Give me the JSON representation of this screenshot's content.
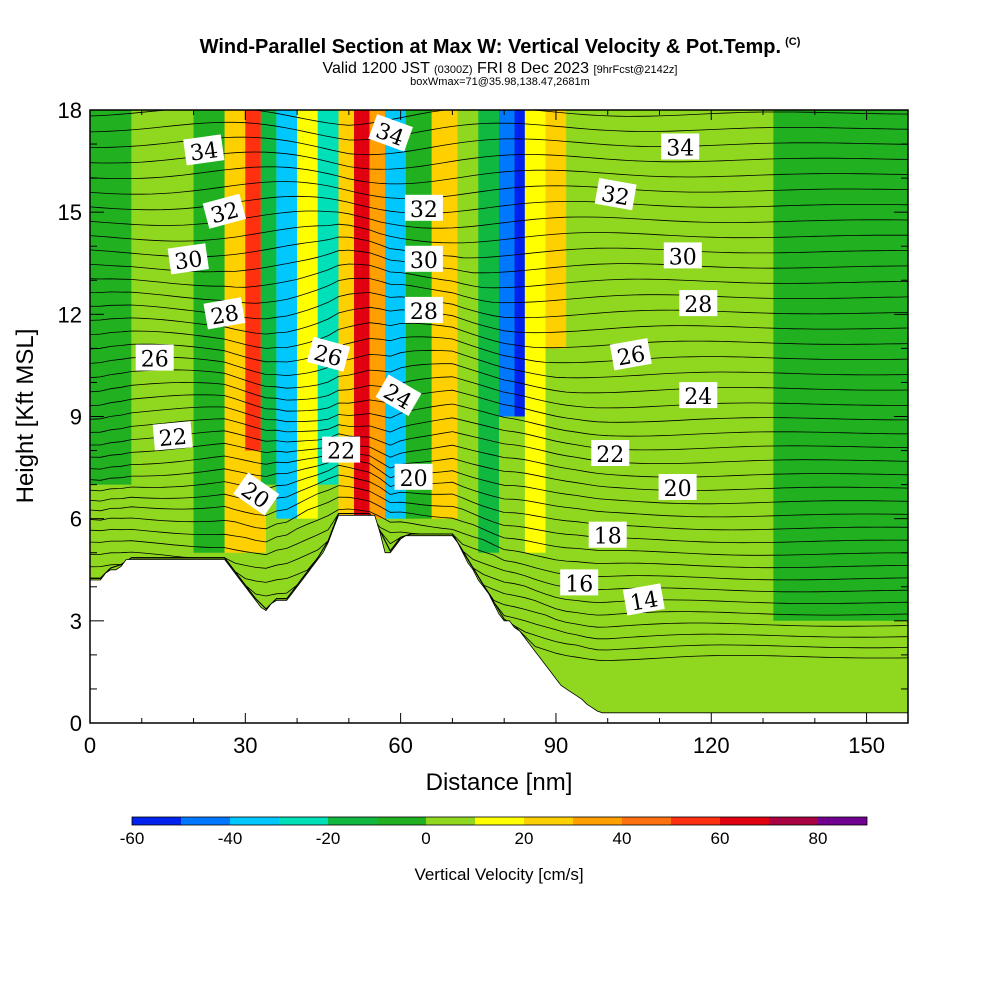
{
  "header": {
    "title": "Wind-Parallel Section at Max W: Vertical Velocity & Pot.Temp.",
    "copyright": "(C)",
    "valid_prefix": "Valid 1200 JST",
    "valid_utc": "(0300Z)",
    "valid_date": "FRI 8 Dec 2023",
    "forecast": "[9hrFcst@2142z]",
    "box_info": "boxWmax=71@35.98,138.47,2681m"
  },
  "chart_data": {
    "type": "heatmap",
    "xlabel": "Distance [nm]",
    "ylabel": "Height [Kft MSL]",
    "xlim": [
      0,
      158
    ],
    "ylim": [
      0,
      18
    ],
    "x_ticks": [
      0,
      30,
      60,
      90,
      120,
      150
    ],
    "y_ticks": [
      0,
      3,
      6,
      9,
      12,
      15,
      18
    ],
    "colorbar": {
      "title": "Vertical Velocity [cm/s]",
      "levels": [
        -60,
        -50,
        -40,
        -30,
        -20,
        -10,
        0,
        10,
        20,
        30,
        40,
        50,
        60,
        70,
        80,
        90
      ],
      "tick_labels": [
        -60,
        -40,
        -20,
        0,
        20,
        40,
        60,
        80
      ],
      "colors": [
        "#0022ee",
        "#0077ff",
        "#00c8ff",
        "#00e0b8",
        "#10b840",
        "#20b020",
        "#90d820",
        "#ffff00",
        "#ffd000",
        "#ffa000",
        "#ff7010",
        "#ff3010",
        "#e00010",
        "#a80040",
        "#700090"
      ]
    },
    "terrain_kft": [
      [
        0,
        4.2
      ],
      [
        1,
        4.2
      ],
      [
        2,
        4.2
      ],
      [
        3,
        4.4
      ],
      [
        4,
        4.5
      ],
      [
        5,
        4.5
      ],
      [
        6,
        4.6
      ],
      [
        7,
        4.8
      ],
      [
        8,
        4.8
      ],
      [
        26,
        4.8
      ],
      [
        27,
        4.6
      ],
      [
        28,
        4.4
      ],
      [
        29,
        4.2
      ],
      [
        30,
        4.0
      ],
      [
        31,
        3.8
      ],
      [
        32,
        3.6
      ],
      [
        33,
        3.4
      ],
      [
        34,
        3.3
      ],
      [
        35,
        3.5
      ],
      [
        36,
        3.6
      ],
      [
        37,
        3.6
      ],
      [
        38,
        3.6
      ],
      [
        39,
        3.8
      ],
      [
        40,
        4.0
      ],
      [
        41,
        4.2
      ],
      [
        42,
        4.4
      ],
      [
        43,
        4.6
      ],
      [
        44,
        4.8
      ],
      [
        45,
        5.0
      ],
      [
        46,
        5.3
      ],
      [
        47,
        5.7
      ],
      [
        48,
        6.1
      ],
      [
        55,
        6.1
      ],
      [
        56,
        5.6
      ],
      [
        57,
        5.0
      ],
      [
        58,
        5.0
      ],
      [
        59,
        5.2
      ],
      [
        60,
        5.4
      ],
      [
        61,
        5.5
      ],
      [
        70,
        5.5
      ],
      [
        71,
        5.3
      ],
      [
        72,
        5.0
      ],
      [
        73,
        4.7
      ],
      [
        74,
        4.5
      ],
      [
        75,
        4.2
      ],
      [
        76,
        4.0
      ],
      [
        77,
        3.8
      ],
      [
        78,
        3.5
      ],
      [
        79,
        3.2
      ],
      [
        80,
        3.0
      ],
      [
        81,
        3.0
      ],
      [
        82,
        2.8
      ],
      [
        83,
        2.7
      ],
      [
        84,
        2.5
      ],
      [
        85,
        2.3
      ],
      [
        86,
        2.1
      ],
      [
        87,
        1.9
      ],
      [
        88,
        1.7
      ],
      [
        89,
        1.5
      ],
      [
        90,
        1.3
      ],
      [
        91,
        1.1
      ],
      [
        92,
        1.0
      ],
      [
        93,
        0.9
      ],
      [
        94,
        0.8
      ],
      [
        95,
        0.7
      ],
      [
        96,
        0.55
      ],
      [
        97,
        0.45
      ],
      [
        98,
        0.35
      ],
      [
        99,
        0.3
      ],
      [
        158,
        0.3
      ]
    ],
    "vertical_velocity_cells": [
      {
        "x": [
          0,
          158
        ],
        "y": [
          0,
          18
        ],
        "w": 0
      },
      {
        "x": [
          0,
          8
        ],
        "y": [
          7,
          18
        ],
        "w": -5
      },
      {
        "x": [
          8,
          20
        ],
        "y": [
          5,
          18
        ],
        "w": 5
      },
      {
        "x": [
          20,
          26
        ],
        "y": [
          5,
          18
        ],
        "w": -10
      },
      {
        "x": [
          26,
          30
        ],
        "y": [
          5,
          18
        ],
        "w": 25
      },
      {
        "x": [
          30,
          33
        ],
        "y": [
          8,
          18
        ],
        "w": 55
      },
      {
        "x": [
          28,
          34
        ],
        "y": [
          5,
          8
        ],
        "w": 20
      },
      {
        "x": [
          33,
          36
        ],
        "y": [
          7,
          18
        ],
        "w": -15
      },
      {
        "x": [
          36,
          40
        ],
        "y": [
          6,
          18
        ],
        "w": -35
      },
      {
        "x": [
          40,
          44
        ],
        "y": [
          6,
          18
        ],
        "w": 10
      },
      {
        "x": [
          44,
          48
        ],
        "y": [
          7,
          18
        ],
        "w": -25
      },
      {
        "x": [
          48,
          51
        ],
        "y": [
          6,
          18
        ],
        "w": 25
      },
      {
        "x": [
          51,
          54
        ],
        "y": [
          6,
          18
        ],
        "w": 65
      },
      {
        "x": [
          54,
          57
        ],
        "y": [
          6,
          18
        ],
        "w": 35
      },
      {
        "x": [
          57,
          61
        ],
        "y": [
          6,
          18
        ],
        "w": -35
      },
      {
        "x": [
          61,
          66
        ],
        "y": [
          6,
          18
        ],
        "w": -5
      },
      {
        "x": [
          66,
          71
        ],
        "y": [
          6,
          18
        ],
        "w": 25
      },
      {
        "x": [
          71,
          75
        ],
        "y": [
          6,
          18
        ],
        "w": 5
      },
      {
        "x": [
          75,
          79
        ],
        "y": [
          5,
          18
        ],
        "w": -20
      },
      {
        "x": [
          79,
          82
        ],
        "y": [
          9,
          18
        ],
        "w": -45
      },
      {
        "x": [
          82,
          84
        ],
        "y": [
          9,
          18
        ],
        "w": -60
      },
      {
        "x": [
          84,
          88
        ],
        "y": [
          5,
          18
        ],
        "w": 15
      },
      {
        "x": [
          88,
          92
        ],
        "y": [
          11,
          18
        ],
        "w": 25
      },
      {
        "x": [
          92,
          100
        ],
        "y": [
          7,
          18
        ],
        "w": 0
      },
      {
        "x": [
          100,
          108
        ],
        "y": [
          0,
          18
        ],
        "w": 5
      },
      {
        "x": [
          108,
          124
        ],
        "y": [
          0,
          18
        ],
        "w": 0
      },
      {
        "x": [
          124,
          132
        ],
        "y": [
          0,
          12
        ],
        "w": 5
      },
      {
        "x": [
          132,
          158
        ],
        "y": [
          3,
          18
        ],
        "w": -5
      },
      {
        "x": [
          132,
          158
        ],
        "y": [
          0,
          3
        ],
        "w": 5
      }
    ],
    "theta_contours": {
      "level_step": 1,
      "labels": [
        {
          "text": "34",
          "x": 22,
          "y": 16.8,
          "angle": -8
        },
        {
          "text": "32",
          "x": 26,
          "y": 15.0,
          "angle": -15
        },
        {
          "text": "30",
          "x": 19,
          "y": 13.6,
          "angle": -8
        },
        {
          "text": "28",
          "x": 26,
          "y": 12.0,
          "angle": -10
        },
        {
          "text": "26",
          "x": 12.5,
          "y": 10.7,
          "angle": 0
        },
        {
          "text": "22",
          "x": 16,
          "y": 8.4,
          "angle": -5
        },
        {
          "text": "20",
          "x": 32,
          "y": 6.7,
          "angle": 35
        },
        {
          "text": "34",
          "x": 58,
          "y": 17.3,
          "angle": 20
        },
        {
          "text": "32",
          "x": 64.5,
          "y": 15.1,
          "angle": 0
        },
        {
          "text": "30",
          "x": 64.5,
          "y": 13.6,
          "angle": 0
        },
        {
          "text": "28",
          "x": 64.5,
          "y": 12.1,
          "angle": 0
        },
        {
          "text": "26",
          "x": 46,
          "y": 10.8,
          "angle": 15
        },
        {
          "text": "24",
          "x": 59.5,
          "y": 9.6,
          "angle": 30
        },
        {
          "text": "22",
          "x": 48.5,
          "y": 8.0,
          "angle": 0
        },
        {
          "text": "20",
          "x": 62.5,
          "y": 7.2,
          "angle": 0
        },
        {
          "text": "34",
          "x": 114,
          "y": 16.9,
          "angle": 0
        },
        {
          "text": "32",
          "x": 101.5,
          "y": 15.5,
          "angle": 10
        },
        {
          "text": "30",
          "x": 114.5,
          "y": 13.7,
          "angle": 0
        },
        {
          "text": "28",
          "x": 117.5,
          "y": 12.3,
          "angle": 0
        },
        {
          "text": "26",
          "x": 104.5,
          "y": 10.8,
          "angle": -10
        },
        {
          "text": "24",
          "x": 117.5,
          "y": 9.6,
          "angle": 0
        },
        {
          "text": "22",
          "x": 100.5,
          "y": 7.9,
          "angle": 0
        },
        {
          "text": "20",
          "x": 113.5,
          "y": 6.9,
          "angle": 0
        },
        {
          "text": "18",
          "x": 100,
          "y": 5.5,
          "angle": 0
        },
        {
          "text": "16",
          "x": 94.5,
          "y": 4.1,
          "angle": 0
        },
        {
          "text": "14",
          "x": 107,
          "y": 3.6,
          "angle": -10
        }
      ]
    }
  }
}
